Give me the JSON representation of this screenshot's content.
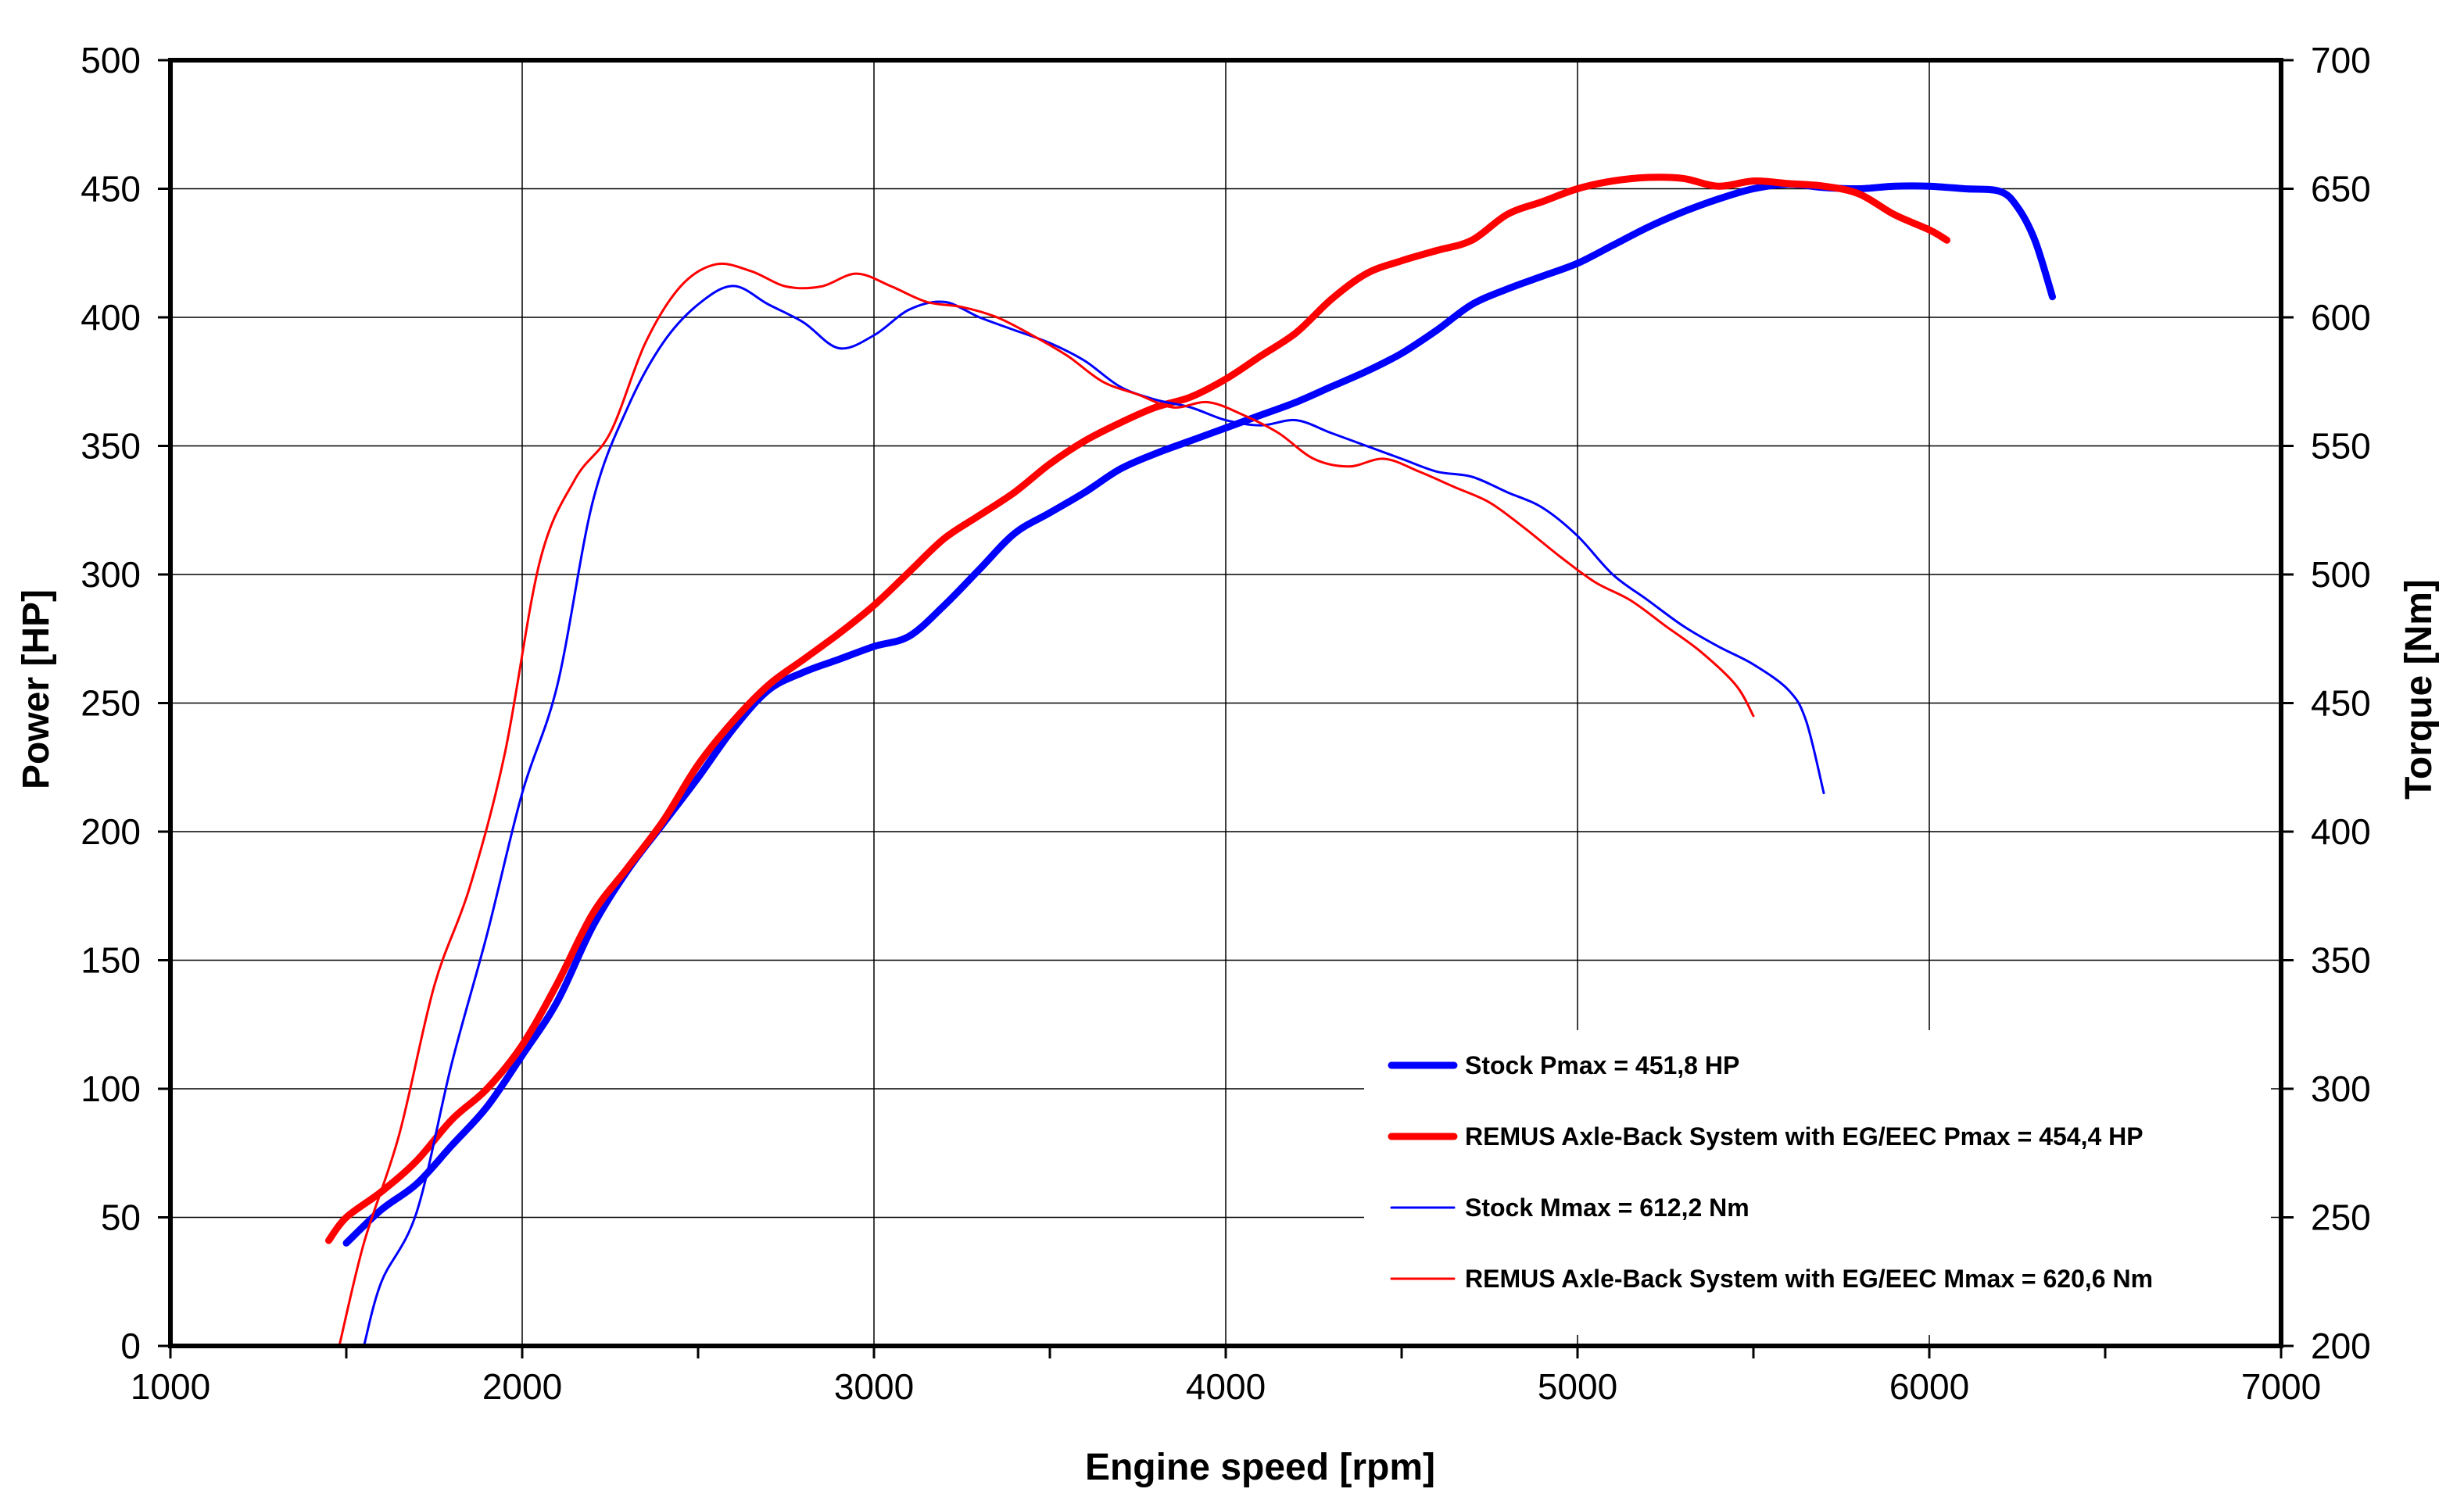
{
  "chart_data": {
    "type": "line",
    "title": "",
    "xlabel": "Engine speed [rpm]",
    "ylabel": "Power [HP]",
    "y2label": "Torque [Nm]",
    "xlim": [
      1000,
      7000
    ],
    "ylim": [
      0,
      500
    ],
    "y2lim": [
      200,
      700
    ],
    "x_ticks": [
      "1000",
      "2000",
      "3000",
      "4000",
      "5000",
      "6000",
      "7000"
    ],
    "y_ticks": [
      "0",
      "50",
      "100",
      "150",
      "200",
      "250",
      "300",
      "350",
      "400",
      "450",
      "500"
    ],
    "y2_ticks": [
      "200",
      "250",
      "300",
      "350",
      "400",
      "450",
      "500",
      "550",
      "600",
      "650",
      "700"
    ],
    "grid": true,
    "legend_position": "bottom-right",
    "series": [
      {
        "name": "Stock Pmax = 451,8 HP",
        "axis": "left",
        "color": "#0000ff",
        "width": "thick",
        "points": [
          [
            1500,
            40
          ],
          [
            1600,
            53
          ],
          [
            1700,
            63
          ],
          [
            1800,
            78
          ],
          [
            1900,
            93
          ],
          [
            2000,
            113
          ],
          [
            2100,
            134
          ],
          [
            2200,
            163
          ],
          [
            2300,
            185
          ],
          [
            2400,
            203
          ],
          [
            2500,
            221
          ],
          [
            2600,
            240
          ],
          [
            2700,
            255
          ],
          [
            2800,
            262
          ],
          [
            2900,
            267
          ],
          [
            3000,
            272
          ],
          [
            3100,
            276
          ],
          [
            3200,
            288
          ],
          [
            3300,
            302
          ],
          [
            3400,
            316
          ],
          [
            3500,
            324
          ],
          [
            3600,
            332
          ],
          [
            3700,
            341
          ],
          [
            3800,
            347
          ],
          [
            3900,
            352
          ],
          [
            4000,
            357
          ],
          [
            4100,
            362
          ],
          [
            4200,
            367
          ],
          [
            4300,
            373
          ],
          [
            4400,
            379
          ],
          [
            4500,
            386
          ],
          [
            4600,
            395
          ],
          [
            4700,
            405
          ],
          [
            4800,
            411
          ],
          [
            4900,
            416
          ],
          [
            5000,
            421
          ],
          [
            5100,
            428
          ],
          [
            5200,
            435
          ],
          [
            5300,
            441
          ],
          [
            5400,
            446
          ],
          [
            5500,
            450
          ],
          [
            5600,
            451.8
          ],
          [
            5700,
            450.5
          ],
          [
            5800,
            450
          ],
          [
            5900,
            451
          ],
          [
            6000,
            451
          ],
          [
            6100,
            450
          ],
          [
            6200,
            449
          ],
          [
            6250,
            443
          ],
          [
            6300,
            430
          ],
          [
            6350,
            408
          ]
        ]
      },
      {
        "name": "REMUS Axle-Back System with EG/EEC Pmax =  454,4 HP",
        "axis": "left",
        "color": "#ff0000",
        "width": "thick",
        "points": [
          [
            1450,
            41
          ],
          [
            1500,
            50
          ],
          [
            1600,
            60
          ],
          [
            1700,
            72
          ],
          [
            1800,
            88
          ],
          [
            1900,
            100
          ],
          [
            2000,
            117
          ],
          [
            2100,
            141
          ],
          [
            2200,
            168
          ],
          [
            2300,
            186
          ],
          [
            2400,
            204
          ],
          [
            2500,
            226
          ],
          [
            2600,
            243
          ],
          [
            2700,
            257
          ],
          [
            2800,
            267
          ],
          [
            2900,
            277
          ],
          [
            3000,
            288
          ],
          [
            3100,
            301
          ],
          [
            3200,
            314
          ],
          [
            3300,
            323
          ],
          [
            3400,
            332
          ],
          [
            3500,
            343
          ],
          [
            3600,
            352
          ],
          [
            3700,
            359
          ],
          [
            3800,
            365
          ],
          [
            3900,
            369
          ],
          [
            4000,
            376
          ],
          [
            4100,
            385
          ],
          [
            4200,
            394
          ],
          [
            4300,
            407
          ],
          [
            4400,
            417
          ],
          [
            4500,
            422
          ],
          [
            4600,
            426
          ],
          [
            4700,
            430
          ],
          [
            4800,
            440
          ],
          [
            4900,
            445
          ],
          [
            5000,
            450
          ],
          [
            5100,
            453
          ],
          [
            5200,
            454.4
          ],
          [
            5300,
            454
          ],
          [
            5400,
            451
          ],
          [
            5500,
            453
          ],
          [
            5600,
            452
          ],
          [
            5700,
            451
          ],
          [
            5800,
            448
          ],
          [
            5900,
            440
          ],
          [
            6000,
            434
          ],
          [
            6050,
            430
          ]
        ]
      },
      {
        "name": "Stock Mmax = 612,2 Nm",
        "axis": "right",
        "color": "#0000ff",
        "width": "thin",
        "points": [
          [
            1550,
            200
          ],
          [
            1600,
            225
          ],
          [
            1700,
            252
          ],
          [
            1800,
            310
          ],
          [
            1900,
            360
          ],
          [
            2000,
            415
          ],
          [
            2100,
            457
          ],
          [
            2200,
            528
          ],
          [
            2300,
            565
          ],
          [
            2400,
            590
          ],
          [
            2500,
            605
          ],
          [
            2600,
            612.2
          ],
          [
            2700,
            605
          ],
          [
            2800,
            598
          ],
          [
            2900,
            588
          ],
          [
            3000,
            593
          ],
          [
            3100,
            603
          ],
          [
            3200,
            606
          ],
          [
            3300,
            600
          ],
          [
            3400,
            595
          ],
          [
            3500,
            590
          ],
          [
            3600,
            583
          ],
          [
            3700,
            573
          ],
          [
            3800,
            568
          ],
          [
            3900,
            565
          ],
          [
            4000,
            560
          ],
          [
            4100,
            558
          ],
          [
            4200,
            560
          ],
          [
            4300,
            555
          ],
          [
            4400,
            550
          ],
          [
            4500,
            545
          ],
          [
            4600,
            540
          ],
          [
            4700,
            538
          ],
          [
            4800,
            532
          ],
          [
            4900,
            526
          ],
          [
            5000,
            515
          ],
          [
            5100,
            500
          ],
          [
            5200,
            490
          ],
          [
            5300,
            480
          ],
          [
            5400,
            472
          ],
          [
            5500,
            465
          ],
          [
            5600,
            455
          ],
          [
            5650,
            443
          ],
          [
            5700,
            415
          ]
        ]
      },
      {
        "name": "REMUS Axle-Back System with EG/EEC Mmax = 620,6 Nm",
        "axis": "right",
        "color": "#ff0000",
        "width": "thin",
        "points": [
          [
            1480,
            200
          ],
          [
            1550,
            240
          ],
          [
            1650,
            282
          ],
          [
            1750,
            340
          ],
          [
            1850,
            378
          ],
          [
            1950,
            430
          ],
          [
            2050,
            505
          ],
          [
            2150,
            537
          ],
          [
            2250,
            555
          ],
          [
            2350,
            590
          ],
          [
            2450,
            612
          ],
          [
            2550,
            620.6
          ],
          [
            2650,
            618
          ],
          [
            2750,
            612
          ],
          [
            2850,
            612
          ],
          [
            2950,
            617
          ],
          [
            3050,
            612
          ],
          [
            3150,
            606
          ],
          [
            3250,
            604
          ],
          [
            3350,
            600
          ],
          [
            3450,
            593
          ],
          [
            3550,
            585
          ],
          [
            3650,
            575
          ],
          [
            3750,
            570
          ],
          [
            3850,
            565
          ],
          [
            3950,
            567
          ],
          [
            4050,
            562
          ],
          [
            4150,
            555
          ],
          [
            4250,
            545
          ],
          [
            4350,
            542
          ],
          [
            4450,
            545
          ],
          [
            4550,
            540
          ],
          [
            4650,
            534
          ],
          [
            4750,
            528
          ],
          [
            4850,
            518
          ],
          [
            4950,
            507
          ],
          [
            5050,
            497
          ],
          [
            5150,
            490
          ],
          [
            5250,
            480
          ],
          [
            5350,
            470
          ],
          [
            5450,
            457
          ],
          [
            5500,
            445
          ]
        ]
      }
    ]
  }
}
